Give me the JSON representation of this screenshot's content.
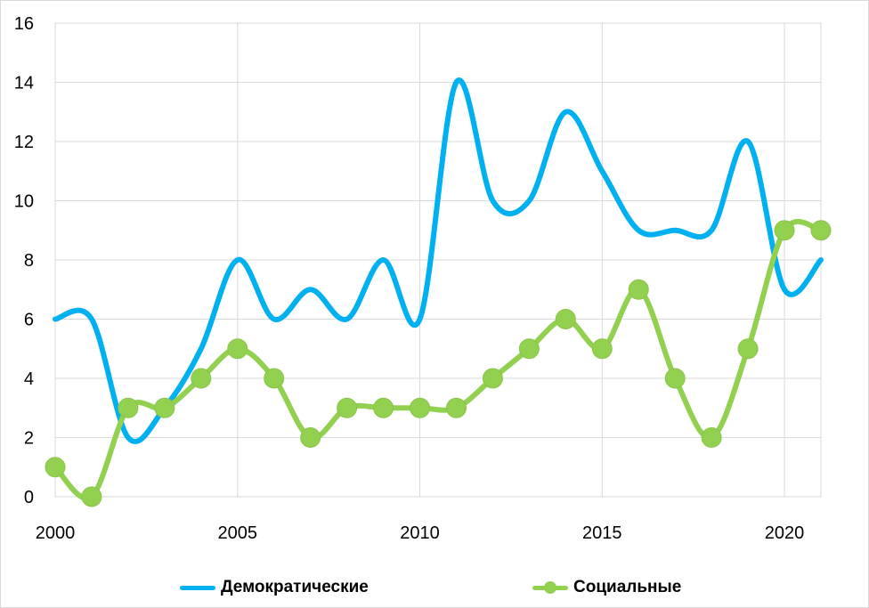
{
  "chart_data": {
    "type": "line",
    "title": "",
    "xlabel": "",
    "ylabel": "",
    "xlim": [
      2000,
      2021
    ],
    "ylim": [
      0,
      16
    ],
    "x_ticks": [
      "2000",
      "2005",
      "2010",
      "2015",
      "2020"
    ],
    "y_ticks": [
      "0",
      "2",
      "4",
      "6",
      "8",
      "10",
      "12",
      "14",
      "16"
    ],
    "grid": "vertical and horizontal",
    "legend_position": "bottom",
    "x": [
      2000,
      2001,
      2002,
      2003,
      2004,
      2005,
      2006,
      2007,
      2008,
      2009,
      2010,
      2011,
      2012,
      2013,
      2014,
      2015,
      2016,
      2017,
      2018,
      2019,
      2020,
      2021
    ],
    "series": [
      {
        "name": "Демократические",
        "color": "#00b0f0",
        "markers": false,
        "values": [
          6,
          6,
          2,
          3,
          5,
          8,
          6,
          7,
          6,
          8,
          6,
          14,
          10,
          10,
          13,
          11,
          9,
          9,
          9,
          12,
          7,
          8
        ]
      },
      {
        "name": "Социальные",
        "color": "#92d050",
        "markers": true,
        "values": [
          1,
          0,
          3,
          3,
          4,
          5,
          4,
          2,
          3,
          3,
          3,
          3,
          4,
          5,
          6,
          5,
          7,
          4,
          2,
          5,
          9,
          9
        ]
      }
    ]
  }
}
